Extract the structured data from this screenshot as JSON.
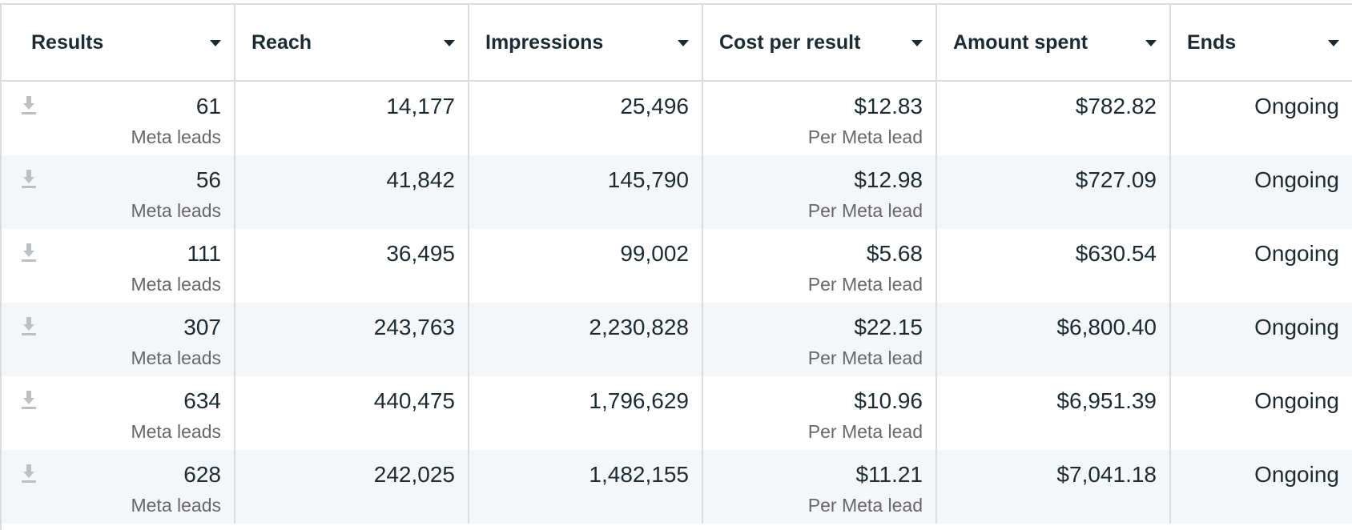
{
  "columns": [
    {
      "label": "Results"
    },
    {
      "label": "Reach"
    },
    {
      "label": "Impressions"
    },
    {
      "label": "Cost per result"
    },
    {
      "label": "Amount spent"
    },
    {
      "label": "Ends"
    }
  ],
  "rows": [
    {
      "results": "61",
      "results_sub": "Meta leads",
      "reach": "14,177",
      "impressions": "25,496",
      "cost": "$12.83",
      "cost_sub": "Per Meta lead",
      "spent": "$782.82",
      "ends": "Ongoing"
    },
    {
      "results": "56",
      "results_sub": "Meta leads",
      "reach": "41,842",
      "impressions": "145,790",
      "cost": "$12.98",
      "cost_sub": "Per Meta lead",
      "spent": "$727.09",
      "ends": "Ongoing"
    },
    {
      "results": "111",
      "results_sub": "Meta leads",
      "reach": "36,495",
      "impressions": "99,002",
      "cost": "$5.68",
      "cost_sub": "Per Meta lead",
      "spent": "$630.54",
      "ends": "Ongoing"
    },
    {
      "results": "307",
      "results_sub": "Meta leads",
      "reach": "243,763",
      "impressions": "2,230,828",
      "cost": "$22.15",
      "cost_sub": "Per Meta lead",
      "spent": "$6,800.40",
      "ends": "Ongoing"
    },
    {
      "results": "634",
      "results_sub": "Meta leads",
      "reach": "440,475",
      "impressions": "1,796,629",
      "cost": "$10.96",
      "cost_sub": "Per Meta lead",
      "spent": "$6,951.39",
      "ends": "Ongoing"
    },
    {
      "results": "628",
      "results_sub": "Meta leads",
      "reach": "242,025",
      "impressions": "1,482,155",
      "cost": "$11.21",
      "cost_sub": "Per Meta lead",
      "spent": "$7,041.18",
      "ends": "Ongoing"
    }
  ],
  "icons": {
    "row_icon": "download-icon",
    "sort_icon": "caret-down-icon"
  },
  "colors": {
    "border": "#dadde1",
    "alt_row": "#f5f6f7",
    "text": "#1c2b33",
    "subtext": "#65676b",
    "icon": "#bcc0c4"
  }
}
